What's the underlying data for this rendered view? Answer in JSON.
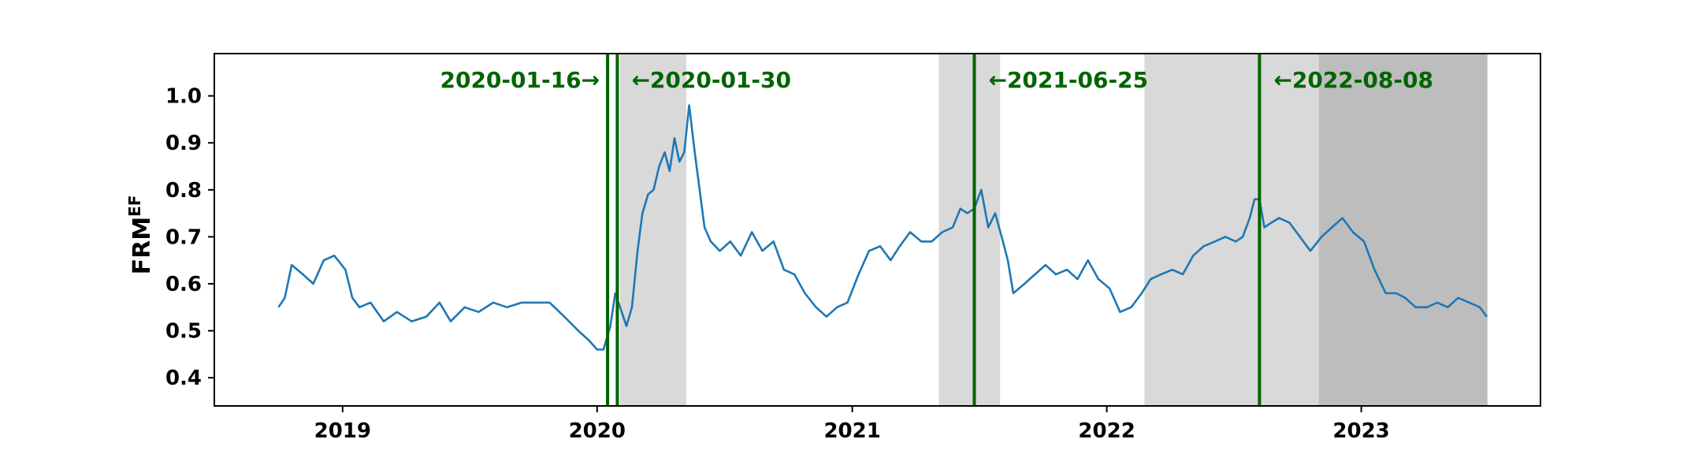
{
  "chart_data": {
    "type": "line",
    "title": "",
    "xlabel": "",
    "ylabel": "FRM",
    "ylabel_superscript": "EF",
    "xlim": [
      "2018-07-01",
      "2023-09-15"
    ],
    "ylim": [
      0.34,
      1.09
    ],
    "x_ticks": [
      "2019",
      "2020",
      "2021",
      "2022",
      "2023"
    ],
    "y_ticks": [
      "0.4",
      "0.5",
      "0.6",
      "0.7",
      "0.8",
      "0.9",
      "1.0"
    ],
    "grid": false,
    "line_color": "#1f77b4",
    "event_color": "#006400",
    "events": [
      {
        "date": "2020-01-16",
        "label": "2020-01-16",
        "arrow": "→",
        "side": "left"
      },
      {
        "date": "2020-01-30",
        "label": "2020-01-30",
        "arrow": "←",
        "side": "right"
      },
      {
        "date": "2021-06-25",
        "label": "2021-06-25",
        "arrow": "←",
        "side": "right"
      },
      {
        "date": "2022-08-08",
        "label": "2022-08-08",
        "arrow": "←",
        "side": "right"
      }
    ],
    "shaded_regions": [
      {
        "start": "2020-02-03",
        "end": "2020-05-08",
        "color": "#d9d9d9"
      },
      {
        "start": "2021-05-05",
        "end": "2021-08-01",
        "color": "#d9d9d9"
      },
      {
        "start": "2022-02-24",
        "end": "2022-11-01",
        "color": "#d9d9d9"
      },
      {
        "start": "2022-11-01",
        "end": "2023-07-01",
        "color": "#bdbdbd"
      }
    ],
    "series": [
      {
        "points": [
          [
            "2018-10-01",
            0.55
          ],
          [
            "2018-10-10",
            0.57
          ],
          [
            "2018-10-20",
            0.64
          ],
          [
            "2018-11-05",
            0.62
          ],
          [
            "2018-11-20",
            0.6
          ],
          [
            "2018-12-05",
            0.65
          ],
          [
            "2018-12-20",
            0.66
          ],
          [
            "2019-01-05",
            0.63
          ],
          [
            "2019-01-15",
            0.57
          ],
          [
            "2019-01-25",
            0.55
          ],
          [
            "2019-02-10",
            0.56
          ],
          [
            "2019-03-01",
            0.52
          ],
          [
            "2019-03-20",
            0.54
          ],
          [
            "2019-04-10",
            0.52
          ],
          [
            "2019-05-01",
            0.53
          ],
          [
            "2019-05-20",
            0.56
          ],
          [
            "2019-06-05",
            0.52
          ],
          [
            "2019-06-25",
            0.55
          ],
          [
            "2019-07-15",
            0.54
          ],
          [
            "2019-08-05",
            0.56
          ],
          [
            "2019-08-25",
            0.55
          ],
          [
            "2019-09-15",
            0.56
          ],
          [
            "2019-10-05",
            0.56
          ],
          [
            "2019-10-25",
            0.56
          ],
          [
            "2019-11-15",
            0.53
          ],
          [
            "2019-12-05",
            0.5
          ],
          [
            "2019-12-20",
            0.48
          ],
          [
            "2020-01-01",
            0.46
          ],
          [
            "2020-01-10",
            0.46
          ],
          [
            "2020-01-20",
            0.51
          ],
          [
            "2020-01-27",
            0.58
          ],
          [
            "2020-02-03",
            0.55
          ],
          [
            "2020-02-12",
            0.51
          ],
          [
            "2020-02-20",
            0.55
          ],
          [
            "2020-02-28",
            0.67
          ],
          [
            "2020-03-06",
            0.75
          ],
          [
            "2020-03-14",
            0.79
          ],
          [
            "2020-03-22",
            0.8
          ],
          [
            "2020-03-30",
            0.85
          ],
          [
            "2020-04-07",
            0.88
          ],
          [
            "2020-04-14",
            0.84
          ],
          [
            "2020-04-21",
            0.91
          ],
          [
            "2020-04-28",
            0.86
          ],
          [
            "2020-05-05",
            0.88
          ],
          [
            "2020-05-12",
            0.98
          ],
          [
            "2020-05-20",
            0.88
          ],
          [
            "2020-05-27",
            0.8
          ],
          [
            "2020-06-03",
            0.72
          ],
          [
            "2020-06-12",
            0.69
          ],
          [
            "2020-06-25",
            0.67
          ],
          [
            "2020-07-10",
            0.69
          ],
          [
            "2020-07-25",
            0.66
          ],
          [
            "2020-08-10",
            0.71
          ],
          [
            "2020-08-25",
            0.67
          ],
          [
            "2020-09-10",
            0.69
          ],
          [
            "2020-09-25",
            0.63
          ],
          [
            "2020-10-10",
            0.62
          ],
          [
            "2020-10-25",
            0.58
          ],
          [
            "2020-11-10",
            0.55
          ],
          [
            "2020-11-25",
            0.53
          ],
          [
            "2020-12-10",
            0.55
          ],
          [
            "2020-12-25",
            0.56
          ],
          [
            "2021-01-10",
            0.62
          ],
          [
            "2021-01-25",
            0.67
          ],
          [
            "2021-02-10",
            0.68
          ],
          [
            "2021-02-25",
            0.65
          ],
          [
            "2021-03-10",
            0.68
          ],
          [
            "2021-03-25",
            0.71
          ],
          [
            "2021-04-10",
            0.69
          ],
          [
            "2021-04-25",
            0.69
          ],
          [
            "2021-05-10",
            0.71
          ],
          [
            "2021-05-25",
            0.72
          ],
          [
            "2021-06-05",
            0.76
          ],
          [
            "2021-06-15",
            0.75
          ],
          [
            "2021-06-25",
            0.76
          ],
          [
            "2021-07-05",
            0.8
          ],
          [
            "2021-07-15",
            0.72
          ],
          [
            "2021-07-25",
            0.75
          ],
          [
            "2021-08-05",
            0.69
          ],
          [
            "2021-08-12",
            0.65
          ],
          [
            "2021-08-20",
            0.58
          ],
          [
            "2021-09-05",
            0.6
          ],
          [
            "2021-09-20",
            0.62
          ],
          [
            "2021-10-05",
            0.64
          ],
          [
            "2021-10-20",
            0.62
          ],
          [
            "2021-11-05",
            0.63
          ],
          [
            "2021-11-20",
            0.61
          ],
          [
            "2021-12-05",
            0.65
          ],
          [
            "2021-12-20",
            0.61
          ],
          [
            "2022-01-05",
            0.59
          ],
          [
            "2022-01-20",
            0.54
          ],
          [
            "2022-02-05",
            0.55
          ],
          [
            "2022-02-20",
            0.58
          ],
          [
            "2022-03-05",
            0.61
          ],
          [
            "2022-03-20",
            0.62
          ],
          [
            "2022-04-05",
            0.63
          ],
          [
            "2022-04-20",
            0.62
          ],
          [
            "2022-05-05",
            0.66
          ],
          [
            "2022-05-20",
            0.68
          ],
          [
            "2022-06-05",
            0.69
          ],
          [
            "2022-06-20",
            0.7
          ],
          [
            "2022-07-05",
            0.69
          ],
          [
            "2022-07-15",
            0.7
          ],
          [
            "2022-07-25",
            0.74
          ],
          [
            "2022-08-01",
            0.78
          ],
          [
            "2022-08-08",
            0.78
          ],
          [
            "2022-08-15",
            0.72
          ],
          [
            "2022-08-25",
            0.73
          ],
          [
            "2022-09-05",
            0.74
          ],
          [
            "2022-09-20",
            0.73
          ],
          [
            "2022-10-05",
            0.7
          ],
          [
            "2022-10-20",
            0.67
          ],
          [
            "2022-11-05",
            0.7
          ],
          [
            "2022-11-20",
            0.72
          ],
          [
            "2022-12-05",
            0.74
          ],
          [
            "2022-12-20",
            0.71
          ],
          [
            "2023-01-05",
            0.69
          ],
          [
            "2023-01-20",
            0.63
          ],
          [
            "2023-02-05",
            0.58
          ],
          [
            "2023-02-20",
            0.58
          ],
          [
            "2023-03-05",
            0.57
          ],
          [
            "2023-03-20",
            0.55
          ],
          [
            "2023-04-05",
            0.55
          ],
          [
            "2023-04-20",
            0.56
          ],
          [
            "2023-05-05",
            0.55
          ],
          [
            "2023-05-20",
            0.57
          ],
          [
            "2023-06-05",
            0.56
          ],
          [
            "2023-06-20",
            0.55
          ],
          [
            "2023-06-30",
            0.53
          ]
        ]
      }
    ]
  }
}
